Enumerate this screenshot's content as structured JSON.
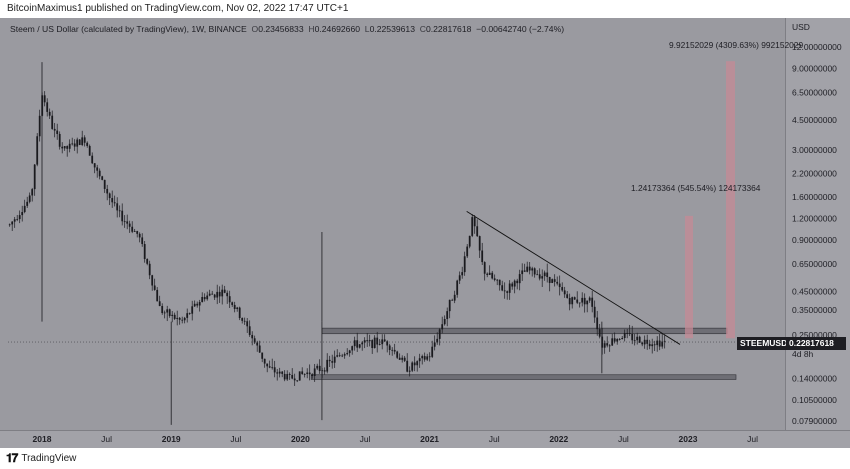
{
  "published": "BitcoinMaximus1 published on TradingView.com, Nov 02, 2022 17:47 UTC+1",
  "header": {
    "symbol_desc": "Steem / US Dollar (calculated by TradingView), 1W, BINANCE",
    "o_label": "O",
    "o_val": "0.23456833",
    "h_label": "H",
    "h_val": "0.24692660",
    "l_label": "L",
    "l_val": "0.22539613",
    "c_label": "C",
    "c_val": "0.22817618",
    "change": "−0.00642740 (−2.74%)"
  },
  "currency": "USD",
  "symbol_badge": "STEEMUSD",
  "price_badge": "0.22817618",
  "countdown": "4d 8h",
  "measure_large": "9.92152029 (4309.63%) 992152029",
  "measure_small": "1.24173364 (545.54%) 124173364",
  "branding": "TradingView",
  "colors": {
    "plot_bg": "#9a9aa0",
    "candles": "#1a1a1e",
    "band": "#4a4a52",
    "target_bar": "#c48a96",
    "trendline": "#111111"
  },
  "chart_data": {
    "type": "candlestick",
    "title": "Steem / US Dollar (calculated by TradingView), 1W, BINANCE",
    "y_scale": "log",
    "y_ticks": [
      "12.00000000",
      "9.00000000",
      "6.50000000",
      "4.50000000",
      "3.00000000",
      "2.20000000",
      "1.60000000",
      "1.20000000",
      "0.90000000",
      "0.65000000",
      "0.45000000",
      "0.35000000",
      "0.25000000",
      "0.14000000",
      "0.10500000",
      "0.07900000"
    ],
    "x_ticks": [
      "2018",
      "Jul",
      "2019",
      "Jul",
      "2020",
      "Jul",
      "2021",
      "Jul",
      "2022",
      "Jul",
      "2023",
      "Jul"
    ],
    "price_path": [
      [
        "2017-10",
        1.1
      ],
      [
        "2017-12",
        1.6
      ],
      [
        "2018-01",
        6.5
      ],
      [
        "2018-02",
        4.0
      ],
      [
        "2018-03",
        3.0
      ],
      [
        "2018-05",
        3.5
      ],
      [
        "2018-06",
        2.3
      ],
      [
        "2018-08",
        1.3
      ],
      [
        "2018-10",
        0.95
      ],
      [
        "2018-12",
        0.35
      ],
      [
        "2019-02",
        0.3
      ],
      [
        "2019-04",
        0.42
      ],
      [
        "2019-06",
        0.45
      ],
      [
        "2019-08",
        0.28
      ],
      [
        "2019-10",
        0.16
      ],
      [
        "2019-12",
        0.14
      ],
      [
        "2020-03",
        0.16
      ],
      [
        "2020-06",
        0.22
      ],
      [
        "2020-09",
        0.23
      ],
      [
        "2020-11",
        0.16
      ],
      [
        "2021-01",
        0.19
      ],
      [
        "2021-03",
        0.4
      ],
      [
        "2021-04",
        0.6
      ],
      [
        "2021-05",
        1.2
      ],
      [
        "2021-06",
        0.6
      ],
      [
        "2021-08",
        0.45
      ],
      [
        "2021-10",
        0.6
      ],
      [
        "2021-12",
        0.55
      ],
      [
        "2022-02",
        0.4
      ],
      [
        "2022-04",
        0.4
      ],
      [
        "2022-05",
        0.22
      ],
      [
        "2022-07",
        0.25
      ],
      [
        "2022-09",
        0.23
      ],
      [
        "2022-11",
        0.228
      ]
    ],
    "annotations": {
      "resistance_band": [
        0.255,
        0.275
      ],
      "support_band": [
        0.138,
        0.147
      ],
      "descending_trendline": [
        [
          "2021-05",
          1.25
        ],
        [
          "2022-11",
          0.23
        ]
      ],
      "target_1_top": 1.24173364,
      "target_2_top": 9.92152029
    },
    "last_price": 0.22817618
  }
}
